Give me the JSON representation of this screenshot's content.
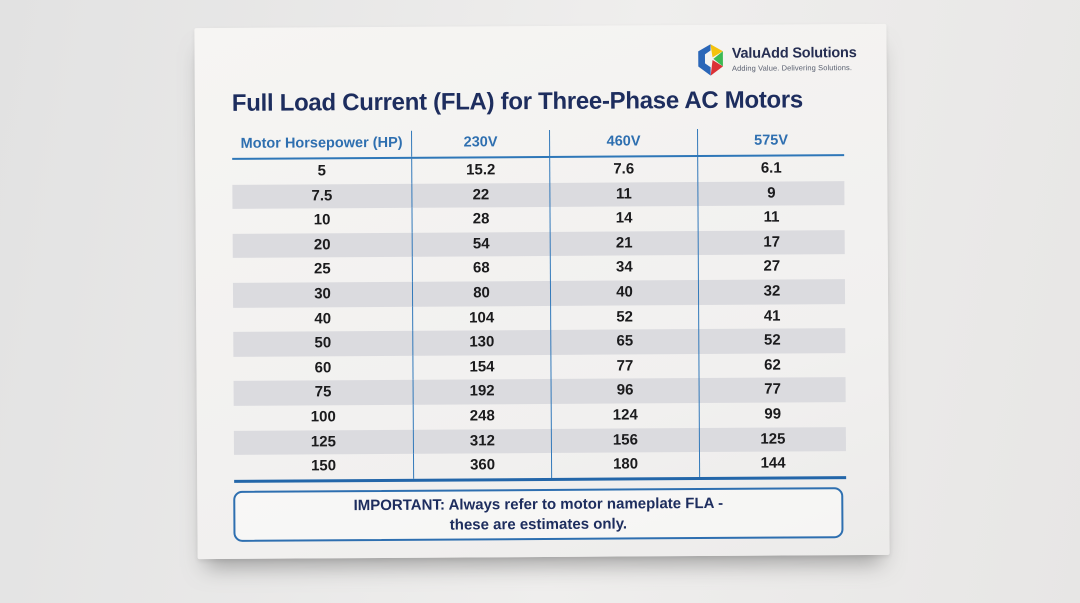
{
  "logo": {
    "name": "ValuAdd Solutions",
    "tagline": "Adding Value. Delivering Solutions."
  },
  "title": "Full Load Current (FLA) for Three-Phase AC Motors",
  "table": {
    "columns": [
      "Motor Horsepower (HP)",
      "230V",
      "460V",
      "575V"
    ],
    "rows": [
      [
        "5",
        "15.2",
        "7.6",
        "6.1"
      ],
      [
        "7.5",
        "22",
        "11",
        "9"
      ],
      [
        "10",
        "28",
        "14",
        "11"
      ],
      [
        "20",
        "54",
        "21",
        "17"
      ],
      [
        "25",
        "68",
        "34",
        "27"
      ],
      [
        "30",
        "80",
        "40",
        "32"
      ],
      [
        "40",
        "104",
        "52",
        "41"
      ],
      [
        "50",
        "130",
        "65",
        "52"
      ],
      [
        "60",
        "154",
        "77",
        "62"
      ],
      [
        "75",
        "192",
        "96",
        "77"
      ],
      [
        "100",
        "248",
        "124",
        "99"
      ],
      [
        "125",
        "312",
        "156",
        "125"
      ],
      [
        "150",
        "360",
        "180",
        "144"
      ]
    ]
  },
  "note": {
    "line1": "IMPORTANT: Always refer to motor nameplate FLA -",
    "line2": "these are estimates only."
  },
  "colors": {
    "title_navy": "#1d2d5e",
    "header_blue": "#2e6fb0",
    "line_blue": "#3279ba",
    "stripe_gray": "#dbdbdf",
    "paper": "#f4f3f1",
    "background": "#e9e8e7"
  }
}
